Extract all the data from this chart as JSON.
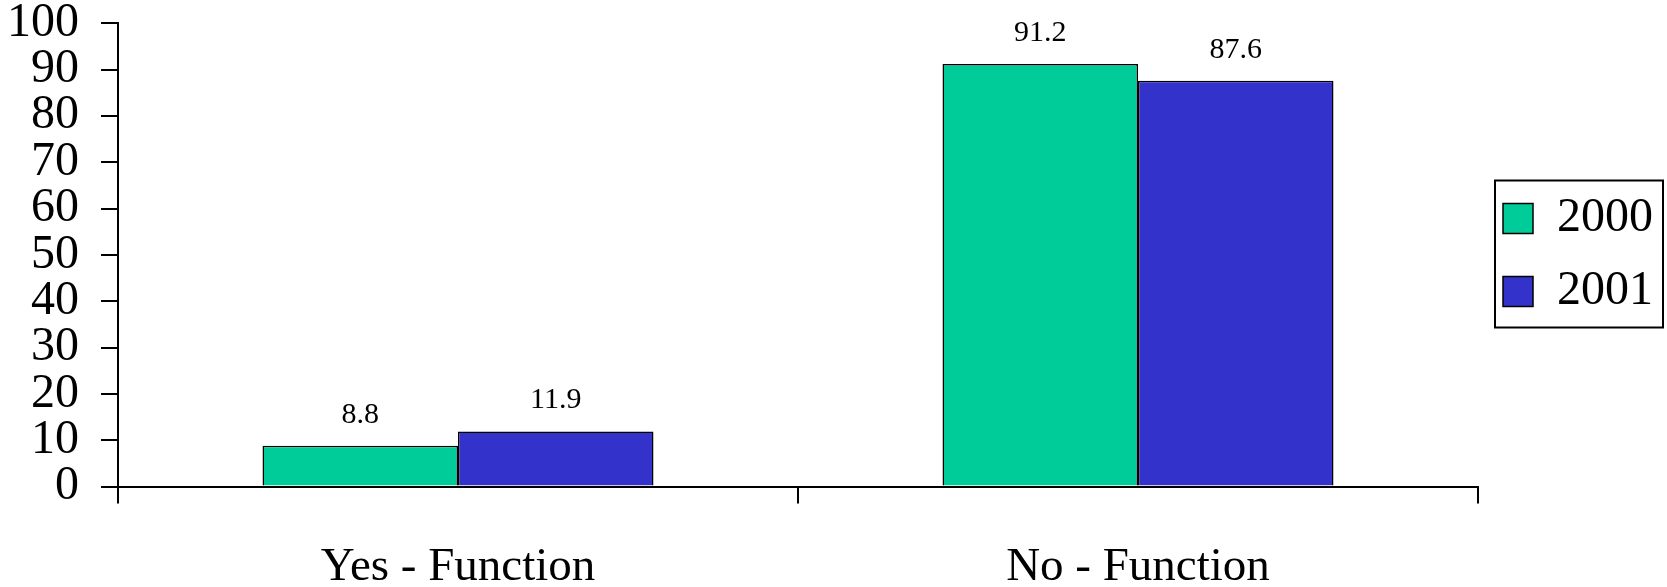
{
  "chart_data": {
    "type": "bar",
    "categories": [
      "Yes - Function",
      "No - Function"
    ],
    "series": [
      {
        "name": "2000",
        "color": "#00cc99",
        "values": [
          8.8,
          91.2
        ]
      },
      {
        "name": "2001",
        "color": "#3333cc",
        "values": [
          11.9,
          87.6
        ]
      }
    ],
    "ylim": [
      0,
      100
    ],
    "yticks": [
      0,
      10,
      20,
      30,
      40,
      50,
      60,
      70,
      80,
      90,
      100
    ],
    "legend": "right",
    "data_labels": true
  }
}
